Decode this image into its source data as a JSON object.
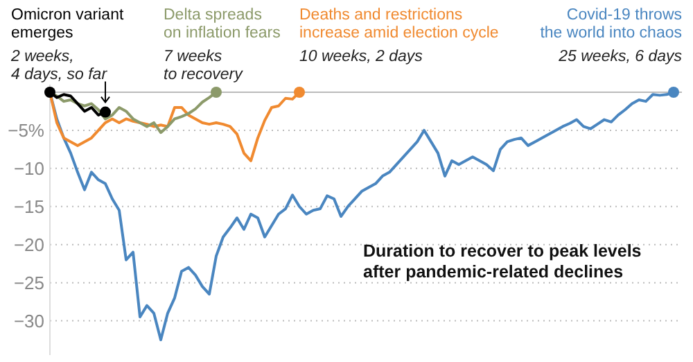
{
  "chart_data": {
    "type": "line",
    "title": "Duration to recover to peak levels after pandemic-related declines",
    "categories": [
      null,
      null,
      null,
      null,
      null,
      null,
      null,
      null,
      null,
      null,
      null,
      null,
      null,
      null,
      null,
      null,
      null,
      null,
      null,
      null,
      null,
      null,
      null,
      null,
      null,
      null,
      null,
      null,
      null,
      null,
      null,
      null,
      null,
      null,
      null,
      null,
      null,
      null,
      null,
      null,
      null,
      null,
      null,
      null,
      null,
      null,
      null,
      null,
      null,
      null,
      null,
      null,
      null,
      null,
      null,
      null,
      null,
      null,
      null,
      null,
      null,
      null,
      null,
      null,
      null,
      null,
      null,
      null,
      null,
      null,
      null,
      null,
      null,
      null,
      null,
      null,
      null,
      null,
      null,
      null,
      null,
      null,
      null,
      null,
      null,
      null,
      null,
      null,
      null,
      null,
      null
    ],
    "series": [
      {
        "name": "Omicron variant emerges",
        "color": "#000000",
        "values": [
          0,
          -0.7,
          -0.3,
          -0.5,
          -1.5,
          -2.5,
          -2,
          -3,
          -2.6,
          null,
          null,
          null,
          null,
          null,
          null,
          null,
          null,
          null,
          null,
          null,
          null,
          null,
          null,
          null,
          null,
          null,
          null,
          null,
          null,
          null,
          null,
          null,
          null,
          null,
          null,
          null,
          null,
          null,
          null,
          null,
          null,
          null,
          null,
          null,
          null,
          null,
          null,
          null,
          null,
          null,
          null,
          null,
          null,
          null,
          null,
          null,
          null,
          null,
          null,
          null,
          null,
          null,
          null,
          null,
          null,
          null,
          null,
          null,
          null,
          null,
          null,
          null,
          null,
          null,
          null,
          null,
          null,
          null,
          null,
          null,
          null,
          null,
          null,
          null,
          null,
          null,
          null,
          null,
          null,
          null,
          null
        ]
      },
      {
        "name": "Delta spreads on inflation fears",
        "color": "#8c9a6a",
        "values": [
          0,
          -0.5,
          -1.2,
          -1,
          -1.5,
          -1.8,
          -1.5,
          -2.3,
          -3.5,
          -3,
          -2,
          -2.5,
          -3.5,
          -4,
          -4.5,
          -4,
          -5.3,
          -4.5,
          -3.5,
          -3.2,
          -2.8,
          -2.2,
          -1.3,
          -0.7,
          0,
          null,
          null,
          null,
          null,
          null,
          null,
          null,
          null,
          null,
          null,
          null,
          null,
          null,
          null,
          null,
          null,
          null,
          null,
          null,
          null,
          null,
          null,
          null,
          null,
          null,
          null,
          null,
          null,
          null,
          null,
          null,
          null,
          null,
          null,
          null,
          null,
          null,
          null,
          null,
          null,
          null,
          null,
          null,
          null,
          null,
          null,
          null,
          null,
          null,
          null,
          null,
          null,
          null,
          null,
          null,
          null,
          null,
          null,
          null,
          null,
          null,
          null,
          null,
          null,
          null,
          null
        ]
      },
      {
        "name": "Deaths and restrictions increase amid election cycle",
        "color": "#f08a30",
        "values": [
          0,
          -4,
          -6,
          -6.5,
          -7,
          -6.5,
          -6,
          -5,
          -4,
          -3.5,
          -4,
          -3.5,
          -3.8,
          -4,
          -4.2,
          -4.5,
          -4.3,
          -4.5,
          -2,
          -2,
          -3,
          -3.5,
          -4,
          -4.2,
          -4,
          -4.2,
          -4.5,
          -5.5,
          -8,
          -9,
          -6,
          -3.7,
          -2,
          -1.8,
          -0.8,
          -0.9,
          0,
          null,
          null,
          null,
          null,
          null,
          null,
          null,
          null,
          null,
          null,
          null,
          null,
          null,
          null,
          null,
          null,
          null,
          null,
          null,
          null,
          null,
          null,
          null,
          null,
          null,
          null,
          null,
          null,
          null,
          null,
          null,
          null,
          null,
          null,
          null,
          null,
          null,
          null,
          null,
          null,
          null,
          null,
          null,
          null,
          null,
          null,
          null,
          null,
          null,
          null,
          null,
          null,
          null,
          null
        ]
      },
      {
        "name": "Covid-19 throws the world into chaos",
        "color": "#4a86c0",
        "values": [
          0,
          -3.5,
          -6,
          -8,
          -10.5,
          -12.8,
          -10.5,
          -11.5,
          -12,
          -14,
          -15.5,
          -22,
          -21,
          -29.5,
          -28,
          -29,
          -32.5,
          -29,
          -27,
          -23.5,
          -23,
          -24,
          -25.5,
          -26.5,
          -21.5,
          -19,
          -17.8,
          -16.5,
          -18,
          -16,
          -16.5,
          -19,
          -17.5,
          -16,
          -15.3,
          -13.5,
          -15,
          -16,
          -15.5,
          -15.3,
          -13.6,
          -14,
          -16.3,
          -15,
          -14,
          -13,
          -12.5,
          -12,
          -11,
          -10.5,
          -9.5,
          -8.5,
          -7.5,
          -6.5,
          -5,
          -6.5,
          -8,
          -11,
          -9,
          -9.5,
          -9,
          -8.5,
          -9,
          -9.5,
          -10.3,
          -7.5,
          -6.5,
          -6.2,
          -6,
          -7,
          -6.5,
          -6,
          -5.5,
          -5,
          -4.5,
          -4.1,
          -3.6,
          -4.5,
          -4.8,
          -4.2,
          -3.6,
          -3.9,
          -3,
          -2.3,
          -1.5,
          -1,
          -1.2,
          -0.3,
          -0.4,
          -0.3,
          0
        ]
      }
    ],
    "annotations": [
      "2 weeks, 4 days, so far",
      "7 weeks to recovery",
      "10 weeks, 2 days",
      "25 weeks, 6 days"
    ],
    "ylim": [
      -34.5,
      1
    ],
    "yticks": [
      {
        "value": 0,
        "label": null
      },
      {
        "value": -5,
        "label": "−5%"
      },
      {
        "value": -10,
        "label": "−10"
      },
      {
        "value": -15,
        "label": "−15"
      },
      {
        "value": -20,
        "label": "−20"
      },
      {
        "value": -25,
        "label": "−25"
      },
      {
        "value": -30,
        "label": "−30"
      }
    ],
    "grid": "y",
    "tick_labels": "y",
    "marker": "none",
    "line_style": "solid"
  }
}
